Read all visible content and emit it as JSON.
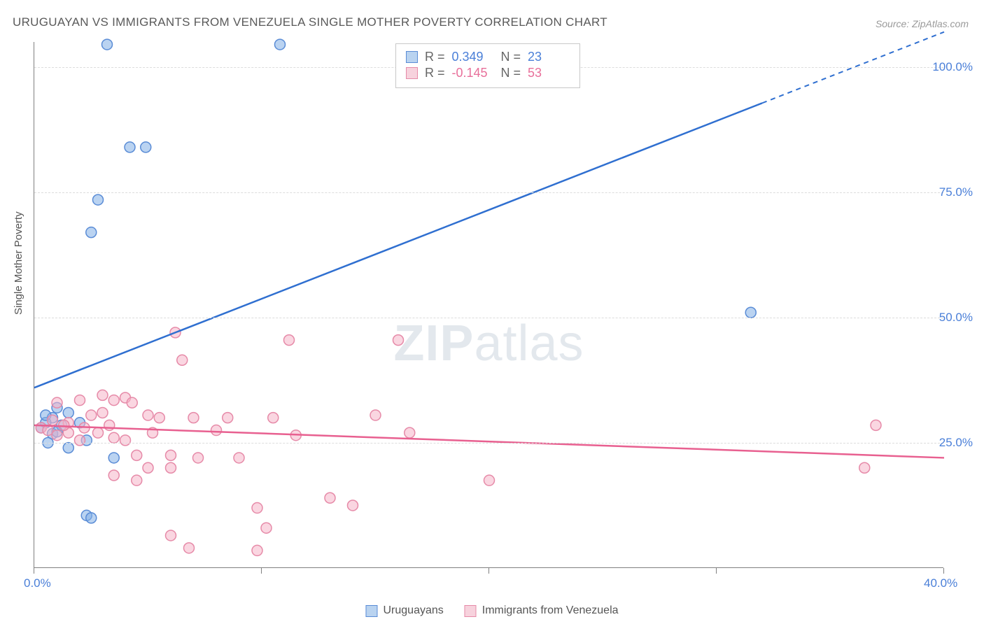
{
  "title": "URUGUAYAN VS IMMIGRANTS FROM VENEZUELA SINGLE MOTHER POVERTY CORRELATION CHART",
  "source": "Source: ZipAtlas.com",
  "ylabel": "Single Mother Poverty",
  "watermark": {
    "bold": "ZIP",
    "rest": "atlas"
  },
  "chart": {
    "type": "scatter",
    "xlim": [
      0,
      40
    ],
    "ylim": [
      0,
      105
    ],
    "xticks": [
      0,
      10,
      20,
      30,
      40
    ],
    "xtick_labels": [
      "0.0%",
      "",
      "",
      "",
      "40.0%"
    ],
    "yticks": [
      25,
      50,
      75,
      100
    ],
    "ytick_labels": [
      "25.0%",
      "50.0%",
      "75.0%",
      "100.0%"
    ],
    "background_color": "#ffffff",
    "grid_color": "#dcdcdc",
    "marker_radius": 7.5,
    "series": [
      {
        "name": "Uruguayans",
        "color_fill": "#b9d3f0",
        "color_stroke": "#5a8cd6",
        "r_value": "0.349",
        "n_value": "23",
        "points": [
          [
            3.2,
            104.5
          ],
          [
            10.8,
            104.5
          ],
          [
            4.2,
            84.0
          ],
          [
            4.9,
            84.0
          ],
          [
            2.8,
            73.5
          ],
          [
            2.5,
            67.0
          ],
          [
            1.0,
            32.0
          ],
          [
            0.8,
            30.0
          ],
          [
            1.5,
            31.0
          ],
          [
            0.5,
            29.0
          ],
          [
            0.3,
            28.0
          ],
          [
            1.2,
            28.5
          ],
          [
            0.8,
            26.8
          ],
          [
            0.6,
            25.0
          ],
          [
            1.5,
            24.0
          ],
          [
            2.3,
            25.5
          ],
          [
            3.5,
            22.0
          ],
          [
            31.5,
            51.0
          ],
          [
            2.3,
            10.5
          ],
          [
            2.5,
            10.0
          ],
          [
            0.5,
            30.5
          ],
          [
            1.0,
            27.2
          ],
          [
            2.0,
            29.0
          ]
        ],
        "trend": {
          "y_at_x0": 36.0,
          "y_at_x40": 107.0,
          "dash_from_x": 32.0
        }
      },
      {
        "name": "Immigrants from Venezuela",
        "color_fill": "#f7d2dd",
        "color_stroke": "#e68aa8",
        "r_value": "-0.145",
        "n_value": "53",
        "points": [
          [
            6.2,
            47.0
          ],
          [
            11.2,
            45.5
          ],
          [
            16.0,
            45.5
          ],
          [
            6.5,
            41.5
          ],
          [
            1.0,
            33.0
          ],
          [
            2.0,
            33.5
          ],
          [
            3.5,
            33.5
          ],
          [
            4.0,
            34.0
          ],
          [
            4.3,
            33.0
          ],
          [
            3.0,
            31.0
          ],
          [
            2.5,
            30.5
          ],
          [
            1.5,
            29.0
          ],
          [
            0.8,
            29.5
          ],
          [
            2.2,
            28.0
          ],
          [
            3.3,
            28.5
          ],
          [
            5.0,
            30.5
          ],
          [
            5.5,
            30.0
          ],
          [
            7.0,
            30.0
          ],
          [
            8.5,
            30.0
          ],
          [
            10.5,
            30.0
          ],
          [
            15.0,
            30.5
          ],
          [
            16.5,
            27.0
          ],
          [
            37.0,
            28.5
          ],
          [
            1.5,
            27.0
          ],
          [
            2.8,
            27.0
          ],
          [
            3.5,
            26.0
          ],
          [
            4.0,
            25.5
          ],
          [
            4.5,
            22.5
          ],
          [
            6.0,
            22.5
          ],
          [
            7.2,
            22.0
          ],
          [
            9.0,
            22.0
          ],
          [
            5.0,
            20.0
          ],
          [
            6.0,
            20.0
          ],
          [
            3.5,
            18.5
          ],
          [
            4.5,
            17.5
          ],
          [
            20.0,
            17.5
          ],
          [
            36.5,
            20.0
          ],
          [
            9.8,
            12.0
          ],
          [
            13.0,
            14.0
          ],
          [
            14.0,
            12.5
          ],
          [
            10.2,
            8.0
          ],
          [
            6.0,
            6.5
          ],
          [
            6.8,
            4.0
          ],
          [
            9.8,
            3.5
          ],
          [
            0.3,
            28.0
          ],
          [
            0.6,
            27.5
          ],
          [
            1.0,
            26.5
          ],
          [
            1.3,
            28.5
          ],
          [
            2.0,
            25.5
          ],
          [
            5.2,
            27.0
          ],
          [
            8.0,
            27.5
          ],
          [
            11.5,
            26.5
          ],
          [
            3.0,
            34.5
          ]
        ],
        "trend": {
          "y_at_x0": 28.5,
          "y_at_x40": 22.0
        }
      }
    ]
  },
  "stats_labels": {
    "R": "R  =",
    "N": "N  ="
  },
  "legend": [
    {
      "label": "Uruguayans",
      "swatch": "blue"
    },
    {
      "label": "Immigrants from Venezuela",
      "swatch": "pink"
    }
  ]
}
